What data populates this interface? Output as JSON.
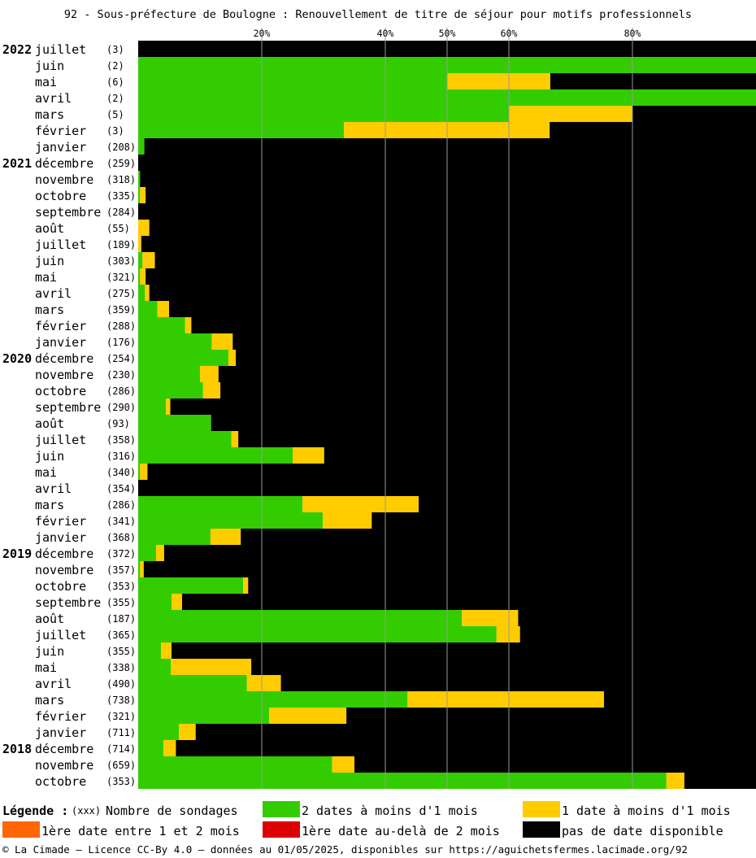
{
  "title": "92 - Sous-préfecture de Boulogne : Renouvellement de titre de séjour pour motifs professionnels",
  "chart_data": {
    "type": "bar",
    "orientation": "horizontal-stacked-percent",
    "title": "92 - Sous-préfecture de Boulogne : Renouvellement de titre de séjour pour motifs professionnels",
    "x_ticks": [
      "20%",
      "40%",
      "50%",
      "60%",
      "80%"
    ],
    "x_tick_values": [
      20,
      40,
      50,
      60,
      80
    ],
    "xlim": [
      0,
      100
    ],
    "grid": true,
    "colors": {
      "green": "#33cc00",
      "yellow": "#ffcc00",
      "orange": "#ff6600",
      "red": "#dd0000",
      "black": "#000000"
    },
    "series_order": [
      "green",
      "yellow",
      "orange",
      "red",
      "black"
    ],
    "rows": [
      {
        "year": "2022",
        "month": "juillet",
        "count": "(3)",
        "green": 0,
        "yellow": 0
      },
      {
        "year": "",
        "month": "juin",
        "count": "(2)",
        "green": 100,
        "yellow": 0
      },
      {
        "year": "",
        "month": "mai",
        "count": "(6)",
        "green": 50,
        "yellow": 16.7
      },
      {
        "year": "",
        "month": "avril",
        "count": "(2)",
        "green": 100,
        "yellow": 0
      },
      {
        "year": "",
        "month": "mars",
        "count": "(5)",
        "green": 60,
        "yellow": 20
      },
      {
        "year": "",
        "month": "février",
        "count": "(3)",
        "green": 33.3,
        "yellow": 33.3
      },
      {
        "year": "",
        "month": "janvier",
        "count": "(208)",
        "green": 1,
        "yellow": 0
      },
      {
        "year": "2021",
        "month": "décembre",
        "count": "(259)",
        "green": 0,
        "yellow": 0
      },
      {
        "year": "",
        "month": "novembre",
        "count": "(318)",
        "green": 0.3,
        "yellow": 0
      },
      {
        "year": "",
        "month": "octobre",
        "count": "(335)",
        "green": 0.3,
        "yellow": 0.9
      },
      {
        "year": "",
        "month": "septembre",
        "count": "(284)",
        "green": 0,
        "yellow": 0
      },
      {
        "year": "",
        "month": "août",
        "count": "(55)",
        "green": 0,
        "yellow": 1.8
      },
      {
        "year": "",
        "month": "juillet",
        "count": "(189)",
        "green": 0,
        "yellow": 0.5
      },
      {
        "year": "",
        "month": "juin",
        "count": "(303)",
        "green": 0.7,
        "yellow": 2
      },
      {
        "year": "",
        "month": "mai",
        "count": "(321)",
        "green": 0.3,
        "yellow": 0.9
      },
      {
        "year": "",
        "month": "avril",
        "count": "(275)",
        "green": 1.1,
        "yellow": 0.7
      },
      {
        "year": "",
        "month": "mars",
        "count": "(359)",
        "green": 3.1,
        "yellow": 1.9
      },
      {
        "year": "",
        "month": "février",
        "count": "(288)",
        "green": 7.6,
        "yellow": 1
      },
      {
        "year": "",
        "month": "janvier",
        "count": "(176)",
        "green": 11.9,
        "yellow": 3.4
      },
      {
        "year": "2020",
        "month": "décembre",
        "count": "(254)",
        "green": 14.6,
        "yellow": 1.2
      },
      {
        "year": "",
        "month": "novembre",
        "count": "(230)",
        "green": 10,
        "yellow": 3
      },
      {
        "year": "",
        "month": "octobre",
        "count": "(286)",
        "green": 10.5,
        "yellow": 2.8
      },
      {
        "year": "",
        "month": "septembre",
        "count": "(290)",
        "green": 4.5,
        "yellow": 0.7
      },
      {
        "year": "",
        "month": "août",
        "count": "(93)",
        "green": 11.8,
        "yellow": 0
      },
      {
        "year": "",
        "month": "juillet",
        "count": "(358)",
        "green": 15.1,
        "yellow": 1.1
      },
      {
        "year": "",
        "month": "juin",
        "count": "(316)",
        "green": 25,
        "yellow": 5.1
      },
      {
        "year": "",
        "month": "mai",
        "count": "(340)",
        "green": 0.3,
        "yellow": 1.2
      },
      {
        "year": "",
        "month": "avril",
        "count": "(354)",
        "green": 0,
        "yellow": 0
      },
      {
        "year": "",
        "month": "mars",
        "count": "(286)",
        "green": 26.6,
        "yellow": 18.8
      },
      {
        "year": "",
        "month": "février",
        "count": "(341)",
        "green": 29.9,
        "yellow": 7.9
      },
      {
        "year": "",
        "month": "janvier",
        "count": "(368)",
        "green": 11.7,
        "yellow": 4.9
      },
      {
        "year": "2019",
        "month": "décembre",
        "count": "(372)",
        "green": 2.9,
        "yellow": 1.3
      },
      {
        "year": "",
        "month": "novembre",
        "count": "(357)",
        "green": 0.3,
        "yellow": 0.6
      },
      {
        "year": "",
        "month": "octobre",
        "count": "(353)",
        "green": 17,
        "yellow": 0.8
      },
      {
        "year": "",
        "month": "septembre",
        "count": "(355)",
        "green": 5.4,
        "yellow": 1.7
      },
      {
        "year": "",
        "month": "août",
        "count": "(187)",
        "green": 52.4,
        "yellow": 9.1
      },
      {
        "year": "",
        "month": "juillet",
        "count": "(365)",
        "green": 58,
        "yellow": 3.8
      },
      {
        "year": "",
        "month": "juin",
        "count": "(355)",
        "green": 3.7,
        "yellow": 1.7
      },
      {
        "year": "",
        "month": "mai",
        "count": "(338)",
        "green": 5.3,
        "yellow": 13
      },
      {
        "year": "",
        "month": "avril",
        "count": "(490)",
        "green": 17.6,
        "yellow": 5.5
      },
      {
        "year": "",
        "month": "mars",
        "count": "(738)",
        "green": 43.6,
        "yellow": 31.8
      },
      {
        "year": "",
        "month": "février",
        "count": "(321)",
        "green": 21.2,
        "yellow": 12.5
      },
      {
        "year": "",
        "month": "janvier",
        "count": "(711)",
        "green": 6.6,
        "yellow": 2.7
      },
      {
        "year": "2018",
        "month": "décembre",
        "count": "(714)",
        "green": 4.1,
        "yellow": 2
      },
      {
        "year": "",
        "month": "novembre",
        "count": "(659)",
        "green": 31.4,
        "yellow": 3.6
      },
      {
        "year": "",
        "month": "octobre",
        "count": "(353)",
        "green": 85.5,
        "yellow": 2.9
      }
    ]
  },
  "legend": {
    "heading": "Légende :",
    "count_marker": "(xxx)",
    "count_label": "Nombre de sondages",
    "items": [
      {
        "color": "#33cc00",
        "label": "2 dates à moins d'1 mois"
      },
      {
        "color": "#ffcc00",
        "label": "1 date à moins d'1 mois"
      },
      {
        "color": "#ff6600",
        "label": "1ère date entre 1 et 2 mois"
      },
      {
        "color": "#dd0000",
        "label": "1ère date au-delà de 2 mois"
      },
      {
        "color": "#000000",
        "label": "pas de date disponible"
      }
    ]
  },
  "footer": "© La Cimade — Licence CC-By 4.0 — données au 01/05/2025, disponibles sur https://aguichetsfermes.lacimade.org/92"
}
